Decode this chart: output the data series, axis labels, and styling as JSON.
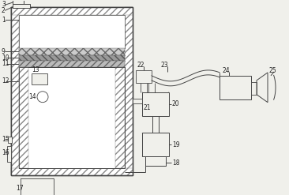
{
  "bg_color": "#f0f0eb",
  "line_color": "#444444",
  "fig_width": 3.66,
  "fig_height": 2.47,
  "dpi": 100
}
